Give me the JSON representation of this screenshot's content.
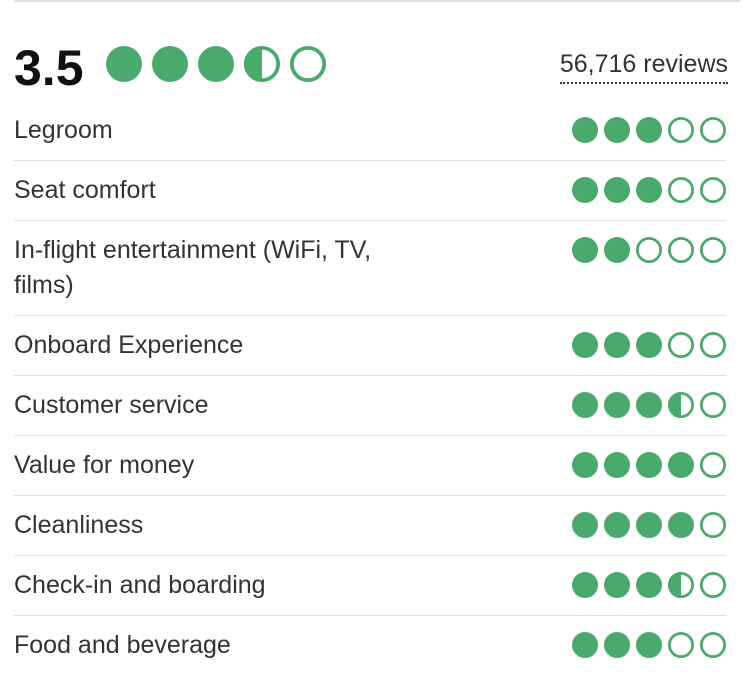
{
  "colors": {
    "bubble_fill": "#4aa96c",
    "bubble_stroke": "#4aa96c",
    "divider": "#e0e0e0",
    "text": "#333333"
  },
  "overall": {
    "score_text": "3.5",
    "rating": 3.5,
    "max": 5,
    "reviews_text": "56,716 reviews"
  },
  "categories": [
    {
      "label": "Legroom",
      "rating": 3
    },
    {
      "label": "Seat comfort",
      "rating": 3
    },
    {
      "label": "In-flight entertainment (WiFi, TV, films)",
      "rating": 2
    },
    {
      "label": "Onboard Experience",
      "rating": 3
    },
    {
      "label": "Customer service",
      "rating": 3.5
    },
    {
      "label": "Value for money",
      "rating": 4
    },
    {
      "label": "Cleanliness",
      "rating": 4
    },
    {
      "label": "Check-in and boarding",
      "rating": 3.5
    },
    {
      "label": "Food and beverage",
      "rating": 3
    }
  ]
}
